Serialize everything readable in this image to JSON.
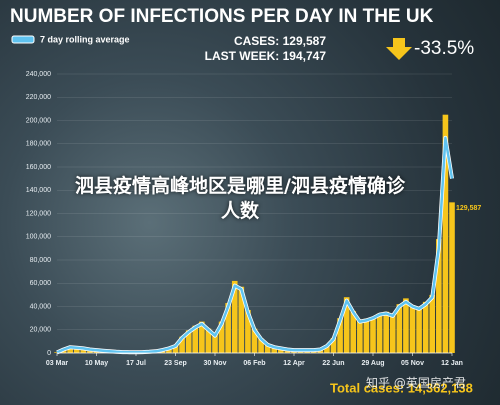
{
  "chart_data": {
    "type": "bar-line",
    "title": "NUMBER OF INFECTIONS PER DAY IN THE UK",
    "cases": "CASES: 129,587",
    "last_week": "LAST WEEK: 194,747",
    "change": "-33.5%",
    "end_label": "129,587",
    "total": "Total cases: 14,362,138",
    "categories": [
      "03 Mar",
      null,
      null,
      null,
      null,
      null,
      "10 May",
      null,
      null,
      null,
      null,
      null,
      "17 Jul",
      null,
      null,
      null,
      null,
      null,
      "23 Sep",
      null,
      null,
      null,
      null,
      null,
      "30 Nov",
      null,
      null,
      null,
      null,
      null,
      "06 Feb",
      null,
      null,
      null,
      null,
      null,
      "12 Apr",
      null,
      null,
      null,
      null,
      null,
      "22 Jun",
      null,
      null,
      null,
      null,
      null,
      "29 Aug",
      null,
      null,
      null,
      null,
      null,
      "05 Nov",
      null,
      null,
      null,
      null,
      null,
      "12 Jan"
    ],
    "bars": {
      "color": "#f6c51b",
      "values": [
        600,
        3500,
        5200,
        4800,
        4100,
        3200,
        2600,
        2100,
        1500,
        1000,
        800,
        700,
        750,
        850,
        1100,
        1700,
        2800,
        4300,
        6500,
        14000,
        19500,
        23500,
        27000,
        21000,
        16500,
        27000,
        43000,
        62000,
        57000,
        37000,
        21000,
        12500,
        7500,
        5200,
        4100,
        3100,
        2600,
        2500,
        2600,
        2700,
        3300,
        6800,
        13000,
        30000,
        48000,
        36000,
        28000,
        29500,
        31000,
        34000,
        35500,
        33000,
        42000,
        47000,
        41000,
        39000,
        44000,
        50000,
        98000,
        205000,
        129587
      ]
    },
    "series": [
      {
        "name": "7 day rolling average",
        "color": "#5fc3f0",
        "values": [
          500,
          3000,
          5000,
          4500,
          4000,
          3000,
          2500,
          2000,
          1500,
          1000,
          800,
          700,
          700,
          800,
          1000,
          1500,
          2500,
          4000,
          6000,
          13000,
          18000,
          22000,
          25000,
          20000,
          15000,
          25000,
          40000,
          58000,
          55000,
          35000,
          20000,
          12000,
          7000,
          5000,
          4000,
          3000,
          2500,
          2500,
          2500,
          2500,
          3000,
          6000,
          12000,
          28000,
          45000,
          35000,
          27000,
          28000,
          30000,
          33000,
          34000,
          32000,
          40000,
          44000,
          40000,
          38000,
          42000,
          48000,
          90000,
          185000,
          150000
        ]
      }
    ],
    "ylim": [
      0,
      240000
    ],
    "yticks": [
      {
        "value": 0,
        "label": "0"
      },
      {
        "value": 20000,
        "label": "20,000"
      },
      {
        "value": 40000,
        "label": "40,000"
      },
      {
        "value": 60000,
        "label": "60,000"
      },
      {
        "value": 80000,
        "label": "80,000"
      },
      {
        "value": 100000,
        "label": "100,000"
      },
      {
        "value": 120000,
        "label": "120,000"
      },
      {
        "value": 140000,
        "label": "140,000"
      },
      {
        "value": 160000,
        "label": "160,000"
      },
      {
        "value": 180000,
        "label": "180,000"
      },
      {
        "value": 200000,
        "label": "200,000"
      },
      {
        "value": 220000,
        "label": "220,000"
      },
      {
        "value": 240000,
        "label": "240,000"
      }
    ],
    "grid": true
  },
  "overlay_title": "泗县疫情高峰地区是哪里/泗县疫情确诊人数",
  "watermark": "知乎 @英国房产君"
}
